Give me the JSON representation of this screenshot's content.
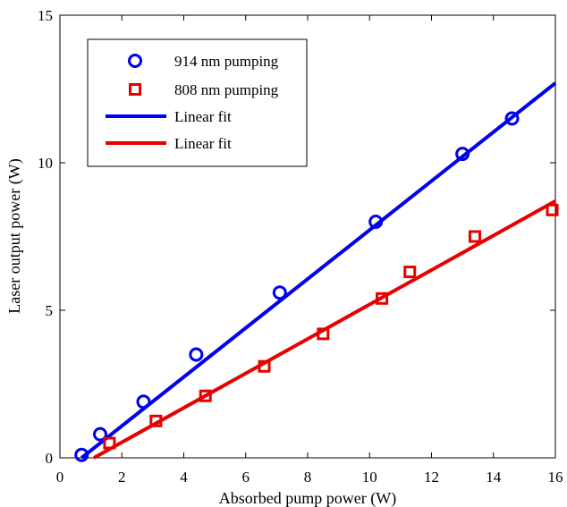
{
  "chart_data": {
    "type": "scatter",
    "xlabel": "Absorbed pump power (W)",
    "ylabel": "Laser output power (W)",
    "xlim": [
      0,
      16
    ],
    "ylim": [
      0,
      15
    ],
    "xticks": [
      0,
      2,
      4,
      6,
      8,
      10,
      12,
      14,
      16
    ],
    "yticks": [
      0,
      5,
      10,
      15
    ],
    "grid": false,
    "legend_position": "top-left",
    "series": [
      {
        "name": "914 nm pumping",
        "kind": "points",
        "marker": "circle",
        "color": "#0000ee",
        "x": [
          0.7,
          1.3,
          2.7,
          4.4,
          7.1,
          10.2,
          13.0,
          14.6
        ],
        "y": [
          0.1,
          0.8,
          1.9,
          3.5,
          5.6,
          8.0,
          10.3,
          11.5
        ]
      },
      {
        "name": "808 nm pumping",
        "kind": "points",
        "marker": "square",
        "color": "#e60000",
        "x": [
          1.6,
          3.1,
          4.7,
          6.6,
          8.5,
          10.4,
          11.3,
          13.4,
          15.9
        ],
        "y": [
          0.5,
          1.25,
          2.1,
          3.1,
          4.2,
          5.4,
          6.3,
          7.5,
          8.4
        ]
      },
      {
        "name": "Linear fit",
        "kind": "line",
        "color": "#0000ee",
        "x": [
          0.7,
          16.0
        ],
        "y": [
          0.0,
          12.7
        ]
      },
      {
        "name": "Linear fit",
        "kind": "line",
        "color": "#e60000",
        "x": [
          1.1,
          16.0
        ],
        "y": [
          0.0,
          8.7
        ]
      }
    ]
  }
}
